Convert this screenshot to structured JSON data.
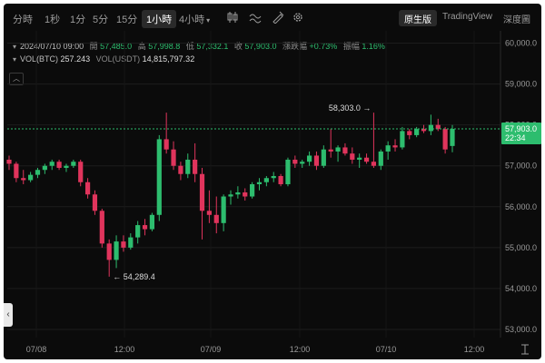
{
  "toolbar": {
    "timeframes": [
      "分時",
      "1秒",
      "1分",
      "5分",
      "15分",
      "1小時",
      "4小時"
    ],
    "active_timeframe": "1小時",
    "view_tabs": [
      "原生版",
      "TradingView",
      "深度圖"
    ],
    "active_view": "原生版"
  },
  "ohlc": {
    "datetime": "2024/07/10 09:00",
    "open_label": "開",
    "open": "57,485.0",
    "high_label": "高",
    "high": "57,998.8",
    "low_label": "低",
    "low": "57,332.1",
    "close_label": "收",
    "close": "57,903.0",
    "change_label": "漲跌幅",
    "change": "+0.73%",
    "amplitude_label": "振幅",
    "amplitude": "1.16%"
  },
  "volume": {
    "vol_btc_label": "VOL(BTC)",
    "vol_btc": "257.243",
    "vol_usdt_label": "VOL(USDT)",
    "vol_usdt": "14,815,797.32"
  },
  "price_axis": [
    "60,000.0",
    "59,000.0",
    "58,000.0",
    "57,000.0",
    "56,000.0",
    "55,000.0",
    "54,000.0",
    "53,000.0"
  ],
  "last_price": {
    "value": "57,903.0",
    "countdown": "22:34"
  },
  "annotations": {
    "high_marker": "58,303.0",
    "low_marker": "54,289.4"
  },
  "time_axis": [
    "07/08",
    "12:00",
    "07/09",
    "12:00",
    "07/10",
    "12:00"
  ],
  "colors": {
    "up": "#2dbd6e",
    "down": "#e0345c",
    "background": "#0b0b0b",
    "last_price_line": "#2dbd6e"
  },
  "chart_data": {
    "type": "candlestick",
    "unit": "USDT",
    "symbol": "BTC",
    "interval": "1H",
    "ylim": [
      52800,
      60300
    ],
    "candles": [
      {
        "o": 57150,
        "h": 57250,
        "l": 56900,
        "c": 57050
      },
      {
        "o": 57050,
        "h": 57100,
        "l": 56600,
        "c": 56700
      },
      {
        "o": 56700,
        "h": 56900,
        "l": 56550,
        "c": 56650
      },
      {
        "o": 56650,
        "h": 56850,
        "l": 56600,
        "c": 56780
      },
      {
        "o": 56780,
        "h": 56950,
        "l": 56700,
        "c": 56900
      },
      {
        "o": 56900,
        "h": 57050,
        "l": 56800,
        "c": 57000
      },
      {
        "o": 57000,
        "h": 57150,
        "l": 56900,
        "c": 57100
      },
      {
        "o": 57100,
        "h": 57150,
        "l": 56900,
        "c": 56950
      },
      {
        "o": 56950,
        "h": 57050,
        "l": 56850,
        "c": 57000
      },
      {
        "o": 57000,
        "h": 57150,
        "l": 56950,
        "c": 57100
      },
      {
        "o": 57100,
        "h": 57150,
        "l": 56500,
        "c": 56600
      },
      {
        "o": 56600,
        "h": 56700,
        "l": 56200,
        "c": 56300
      },
      {
        "o": 56300,
        "h": 56400,
        "l": 55800,
        "c": 55900
      },
      {
        "o": 55900,
        "h": 55950,
        "l": 55000,
        "c": 55100
      },
      {
        "o": 55100,
        "h": 55200,
        "l": 54290,
        "c": 54700
      },
      {
        "o": 54700,
        "h": 55300,
        "l": 54500,
        "c": 55150
      },
      {
        "o": 55150,
        "h": 55300,
        "l": 54900,
        "c": 55000
      },
      {
        "o": 55000,
        "h": 55350,
        "l": 54950,
        "c": 55250
      },
      {
        "o": 55250,
        "h": 55650,
        "l": 55100,
        "c": 55550
      },
      {
        "o": 55550,
        "h": 55700,
        "l": 55300,
        "c": 55450
      },
      {
        "o": 55450,
        "h": 55850,
        "l": 55400,
        "c": 55800
      },
      {
        "o": 55800,
        "h": 57750,
        "l": 55650,
        "c": 57650
      },
      {
        "o": 57650,
        "h": 58300,
        "l": 57300,
        "c": 57400
      },
      {
        "o": 57400,
        "h": 57600,
        "l": 56900,
        "c": 57000
      },
      {
        "o": 57000,
        "h": 57100,
        "l": 56650,
        "c": 56800
      },
      {
        "o": 56800,
        "h": 57300,
        "l": 56700,
        "c": 57150
      },
      {
        "o": 57150,
        "h": 57550,
        "l": 56600,
        "c": 56800
      },
      {
        "o": 56800,
        "h": 56950,
        "l": 55200,
        "c": 55900
      },
      {
        "o": 55900,
        "h": 56400,
        "l": 55600,
        "c": 55800
      },
      {
        "o": 55800,
        "h": 56250,
        "l": 55350,
        "c": 55600
      },
      {
        "o": 55600,
        "h": 56300,
        "l": 55400,
        "c": 56250
      },
      {
        "o": 56250,
        "h": 56400,
        "l": 56050,
        "c": 56300
      },
      {
        "o": 56300,
        "h": 56500,
        "l": 56200,
        "c": 56350
      },
      {
        "o": 56350,
        "h": 56450,
        "l": 56150,
        "c": 56250
      },
      {
        "o": 56250,
        "h": 56600,
        "l": 56200,
        "c": 56550
      },
      {
        "o": 56550,
        "h": 56700,
        "l": 56400,
        "c": 56600
      },
      {
        "o": 56600,
        "h": 56750,
        "l": 56500,
        "c": 56700
      },
      {
        "o": 56700,
        "h": 56850,
        "l": 56600,
        "c": 56750
      },
      {
        "o": 56750,
        "h": 56800,
        "l": 56500,
        "c": 56550
      },
      {
        "o": 56550,
        "h": 57200,
        "l": 56500,
        "c": 57150
      },
      {
        "o": 57150,
        "h": 57250,
        "l": 56950,
        "c": 57050
      },
      {
        "o": 57050,
        "h": 57150,
        "l": 56950,
        "c": 57100
      },
      {
        "o": 57100,
        "h": 57350,
        "l": 57000,
        "c": 57250
      },
      {
        "o": 57250,
        "h": 57350,
        "l": 56900,
        "c": 57000
      },
      {
        "o": 57000,
        "h": 57500,
        "l": 56950,
        "c": 57400
      },
      {
        "o": 57400,
        "h": 57900,
        "l": 57200,
        "c": 57350
      },
      {
        "o": 57350,
        "h": 57500,
        "l": 57100,
        "c": 57450
      },
      {
        "o": 57450,
        "h": 57550,
        "l": 57250,
        "c": 57300
      },
      {
        "o": 57300,
        "h": 57450,
        "l": 57050,
        "c": 57150
      },
      {
        "o": 57150,
        "h": 57300,
        "l": 56950,
        "c": 57200
      },
      {
        "o": 57200,
        "h": 57300,
        "l": 57050,
        "c": 57100
      },
      {
        "o": 57100,
        "h": 58300,
        "l": 56950,
        "c": 57000
      },
      {
        "o": 57000,
        "h": 57400,
        "l": 56900,
        "c": 57350
      },
      {
        "o": 57350,
        "h": 57600,
        "l": 57150,
        "c": 57500
      },
      {
        "o": 57500,
        "h": 57650,
        "l": 57350,
        "c": 57450
      },
      {
        "o": 57450,
        "h": 57950,
        "l": 57400,
        "c": 57850
      },
      {
        "o": 57850,
        "h": 57900,
        "l": 57650,
        "c": 57750
      },
      {
        "o": 57750,
        "h": 57950,
        "l": 57700,
        "c": 57900
      },
      {
        "o": 57900,
        "h": 58000,
        "l": 57800,
        "c": 57850
      },
      {
        "o": 57850,
        "h": 58250,
        "l": 57750,
        "c": 58000
      },
      {
        "o": 58000,
        "h": 58150,
        "l": 57850,
        "c": 57900
      },
      {
        "o": 57900,
        "h": 57950,
        "l": 57300,
        "c": 57400
      },
      {
        "o": 57485,
        "h": 57998.8,
        "l": 57332.1,
        "c": 57903
      }
    ]
  }
}
